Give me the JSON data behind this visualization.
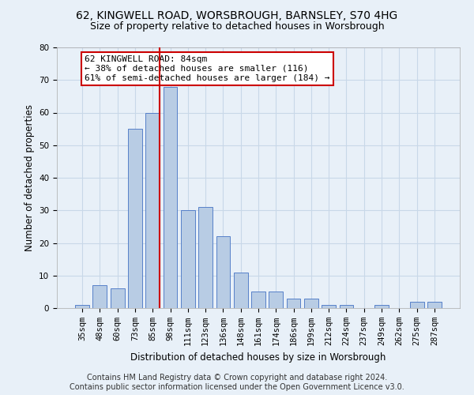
{
  "title": "62, KINGWELL ROAD, WORSBROUGH, BARNSLEY, S70 4HG",
  "subtitle": "Size of property relative to detached houses in Worsbrough",
  "xlabel": "Distribution of detached houses by size in Worsbrough",
  "ylabel": "Number of detached properties",
  "categories": [
    "35sqm",
    "48sqm",
    "60sqm",
    "73sqm",
    "85sqm",
    "98sqm",
    "111sqm",
    "123sqm",
    "136sqm",
    "148sqm",
    "161sqm",
    "174sqm",
    "186sqm",
    "199sqm",
    "212sqm",
    "224sqm",
    "237sqm",
    "249sqm",
    "262sqm",
    "275sqm",
    "287sqm"
  ],
  "values": [
    1,
    7,
    6,
    55,
    60,
    68,
    30,
    31,
    22,
    11,
    5,
    5,
    3,
    3,
    1,
    1,
    0,
    1,
    0,
    2,
    2
  ],
  "bar_color": "#b8cce4",
  "bar_edge_color": "#4472c4",
  "highlight_index": 4,
  "highlight_line_color": "#cc0000",
  "annotation_text": "62 KINGWELL ROAD: 84sqm\n← 38% of detached houses are smaller (116)\n61% of semi-detached houses are larger (184) →",
  "annotation_box_color": "#ffffff",
  "annotation_box_edge_color": "#cc0000",
  "ylim": [
    0,
    80
  ],
  "yticks": [
    0,
    10,
    20,
    30,
    40,
    50,
    60,
    70,
    80
  ],
  "grid_color": "#c8d8e8",
  "background_color": "#e8f0f8",
  "footer_line1": "Contains HM Land Registry data © Crown copyright and database right 2024.",
  "footer_line2": "Contains public sector information licensed under the Open Government Licence v3.0.",
  "title_fontsize": 10,
  "subtitle_fontsize": 9,
  "axis_label_fontsize": 8.5,
  "tick_fontsize": 7.5,
  "annotation_fontsize": 8,
  "footer_fontsize": 7
}
